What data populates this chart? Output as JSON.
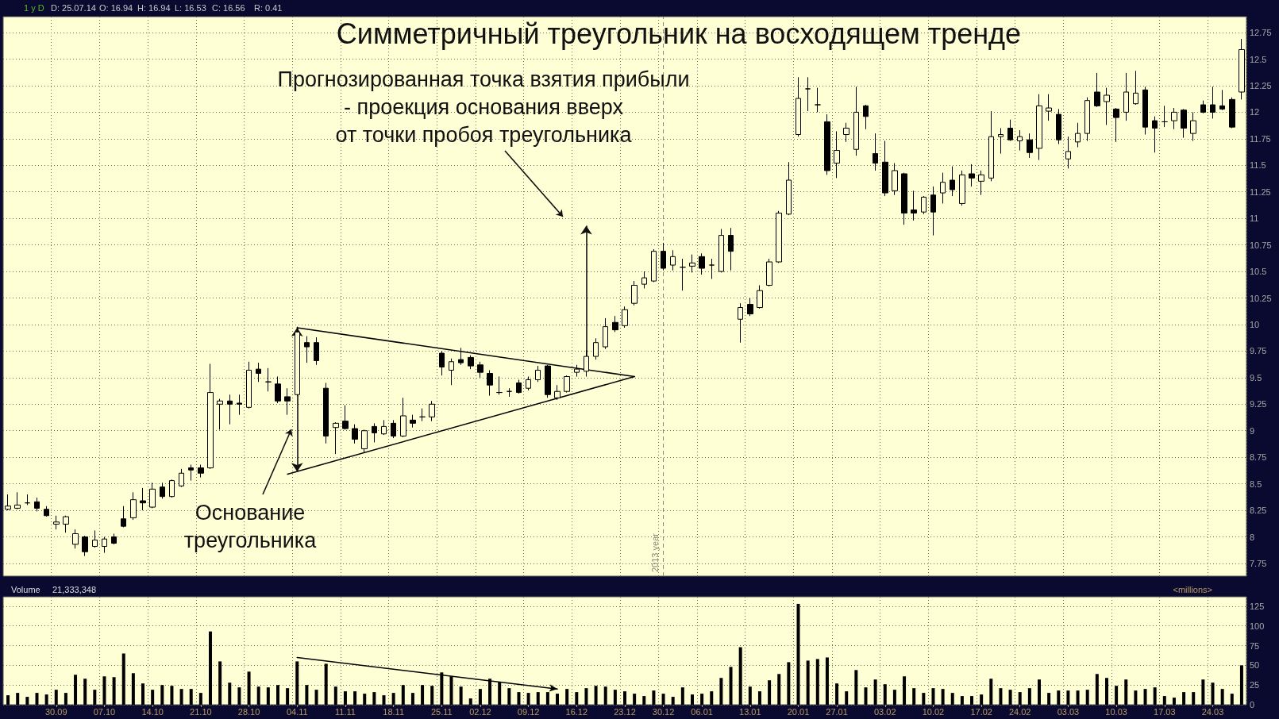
{
  "chart_data": [
    {
      "type": "candlestick",
      "title": "Симметричный треугольник на восходящем тренде",
      "annotations": [
        "1 y D",
        "D: 25.07.14",
        "O: 16.94",
        "H: 16.94",
        "L: 16.53",
        "C: 16.56",
        "R: 0.41",
        "Прогнозированная точка взятия прибыли\n- проекция основания вверх\nот точки пробоя треугольника",
        "Основание\nтреугольника"
      ],
      "ref_lines": [
        {
          "axis": "x",
          "value": "30.12",
          "label": "2013 year",
          "color": "#8a8a7a",
          "line_style": "dashed"
        }
      ],
      "categories": [
        null,
        null,
        null,
        null,
        null,
        "30.09",
        null,
        null,
        null,
        null,
        "07.10",
        null,
        null,
        null,
        null,
        "14.10",
        null,
        null,
        null,
        null,
        "21.10",
        null,
        null,
        null,
        null,
        "28.10",
        null,
        null,
        null,
        null,
        "04.11",
        null,
        null,
        null,
        null,
        "11.11",
        null,
        null,
        null,
        null,
        "18.11",
        null,
        null,
        null,
        null,
        "25.11",
        null,
        null,
        null,
        "02.12",
        null,
        null,
        null,
        null,
        "09.12",
        null,
        null,
        null,
        null,
        "16.12",
        null,
        null,
        null,
        null,
        "23.12",
        null,
        null,
        null,
        "30.12",
        null,
        null,
        null,
        "06.01",
        null,
        null,
        null,
        null,
        "13.01",
        null,
        null,
        null,
        null,
        "20.01",
        null,
        null,
        null,
        "27.01",
        null,
        null,
        null,
        null,
        "03.02",
        null,
        null,
        null,
        null,
        "10.02",
        null,
        null,
        null,
        null,
        "17.02",
        null,
        null,
        null,
        "24.02",
        null,
        null,
        null,
        null,
        "03.03",
        null,
        null,
        null,
        null,
        "10.03",
        null,
        null,
        null,
        null,
        "17.03",
        null,
        null,
        null,
        null,
        "24.03",
        null,
        null,
        null
      ],
      "ohlc": [
        [
          8.26,
          8.4,
          8.25,
          8.29
        ],
        [
          8.27,
          8.42,
          8.26,
          8.3
        ],
        [
          8.32,
          8.4,
          8.3,
          8.32
        ],
        [
          8.33,
          8.37,
          8.24,
          8.27
        ],
        [
          8.26,
          8.29,
          8.19,
          8.2
        ],
        [
          8.12,
          8.2,
          8.07,
          8.14
        ],
        [
          8.12,
          8.2,
          8.04,
          8.19
        ],
        [
          7.93,
          8.07,
          7.89,
          8.03
        ],
        [
          8.0,
          8.01,
          7.82,
          7.86
        ],
        [
          7.91,
          8.06,
          7.9,
          7.97
        ],
        [
          7.91,
          8.0,
          7.85,
          7.98
        ],
        [
          8.0,
          8.03,
          7.93,
          7.94
        ],
        [
          8.17,
          8.29,
          8.09,
          8.1
        ],
        [
          8.18,
          8.42,
          8.16,
          8.35
        ],
        [
          8.34,
          8.46,
          8.25,
          8.32
        ],
        [
          8.28,
          8.51,
          8.27,
          8.45
        ],
        [
          8.47,
          8.51,
          8.36,
          8.38
        ],
        [
          8.38,
          8.54,
          8.37,
          8.53
        ],
        [
          8.48,
          8.64,
          8.47,
          8.6
        ],
        [
          8.65,
          8.68,
          8.53,
          8.63
        ],
        [
          8.65,
          8.68,
          8.56,
          8.6
        ],
        [
          8.65,
          9.63,
          8.64,
          9.36
        ],
        [
          9.25,
          9.3,
          9.01,
          9.28
        ],
        [
          9.28,
          9.34,
          9.06,
          9.25
        ],
        [
          9.26,
          9.34,
          9.15,
          9.25
        ],
        [
          9.22,
          9.65,
          9.21,
          9.57
        ],
        [
          9.58,
          9.64,
          9.46,
          9.54
        ],
        [
          9.46,
          9.59,
          9.37,
          9.46
        ],
        [
          9.44,
          9.51,
          9.26,
          9.28
        ],
        [
          9.32,
          9.4,
          9.15,
          9.28
        ],
        [
          9.34,
          9.98,
          9.33,
          9.93
        ],
        [
          9.83,
          9.89,
          9.64,
          9.79
        ],
        [
          9.83,
          9.88,
          9.62,
          9.66
        ],
        [
          9.4,
          9.45,
          8.88,
          8.95
        ],
        [
          9.03,
          9.08,
          8.78,
          9.07
        ],
        [
          9.09,
          9.24,
          9.01,
          9.02
        ],
        [
          9.02,
          9.06,
          8.88,
          8.92
        ],
        [
          8.83,
          9.01,
          8.79,
          9.0
        ],
        [
          9.04,
          9.07,
          8.89,
          8.98
        ],
        [
          8.97,
          9.1,
          8.96,
          9.04
        ],
        [
          9.07,
          9.1,
          8.93,
          8.95
        ],
        [
          8.95,
          9.31,
          8.94,
          9.14
        ],
        [
          9.1,
          9.15,
          9.03,
          9.07
        ],
        [
          9.13,
          9.21,
          9.09,
          9.13
        ],
        [
          9.13,
          9.28,
          9.09,
          9.25
        ],
        [
          9.73,
          9.75,
          9.52,
          9.6
        ],
        [
          9.57,
          9.68,
          9.43,
          9.65
        ],
        [
          9.67,
          9.78,
          9.62,
          9.64
        ],
        [
          9.69,
          9.71,
          9.58,
          9.61
        ],
        [
          9.62,
          9.65,
          9.5,
          9.55
        ],
        [
          9.54,
          9.57,
          9.33,
          9.43
        ],
        [
          9.36,
          9.51,
          9.34,
          9.36
        ],
        [
          9.37,
          9.4,
          9.32,
          9.37
        ],
        [
          9.45,
          9.48,
          9.35,
          9.36
        ],
        [
          9.4,
          9.51,
          9.38,
          9.48
        ],
        [
          9.48,
          9.61,
          9.46,
          9.57
        ],
        [
          9.61,
          9.62,
          9.31,
          9.34
        ],
        [
          9.31,
          9.43,
          9.29,
          9.37
        ],
        [
          9.37,
          9.52,
          9.36,
          9.51
        ],
        [
          9.55,
          9.62,
          9.51,
          9.58
        ],
        [
          9.56,
          9.76,
          9.51,
          9.7
        ],
        [
          9.7,
          9.87,
          9.67,
          9.83
        ],
        [
          9.79,
          10.06,
          9.77,
          9.98
        ],
        [
          10.02,
          10.08,
          9.93,
          9.95
        ],
        [
          9.99,
          10.17,
          9.97,
          10.14
        ],
        [
          10.2,
          10.41,
          10.18,
          10.37
        ],
        [
          10.38,
          10.5,
          10.34,
          10.44
        ],
        [
          10.41,
          10.71,
          10.4,
          10.69
        ],
        [
          10.69,
          10.77,
          10.51,
          10.53
        ],
        [
          10.56,
          10.7,
          10.51,
          10.64
        ],
        [
          10.54,
          10.62,
          10.32,
          10.54
        ],
        [
          10.55,
          10.66,
          10.49,
          10.58
        ],
        [
          10.64,
          10.67,
          10.47,
          10.53
        ],
        [
          10.56,
          10.62,
          10.43,
          10.56
        ],
        [
          10.5,
          10.9,
          10.49,
          10.84
        ],
        [
          10.84,
          10.91,
          10.51,
          10.69
        ],
        [
          10.05,
          10.2,
          9.83,
          10.16
        ],
        [
          10.19,
          10.25,
          10.08,
          10.1
        ],
        [
          10.16,
          10.37,
          10.15,
          10.32
        ],
        [
          10.37,
          10.62,
          10.36,
          10.59
        ],
        [
          10.59,
          11.07,
          10.58,
          11.05
        ],
        [
          11.04,
          11.53,
          11.03,
          11.36
        ],
        [
          11.79,
          12.33,
          11.77,
          12.13
        ],
        [
          12.22,
          12.33,
          12.01,
          12.22
        ],
        [
          12.07,
          12.23,
          12.0,
          12.07
        ],
        [
          11.91,
          11.98,
          11.41,
          11.45
        ],
        [
          11.52,
          11.82,
          11.38,
          11.64
        ],
        [
          11.79,
          11.9,
          11.72,
          11.85
        ],
        [
          11.65,
          12.24,
          11.59,
          12.0
        ],
        [
          12.06,
          12.07,
          11.84,
          11.96
        ],
        [
          11.61,
          11.8,
          11.45,
          11.52
        ],
        [
          11.53,
          11.73,
          11.21,
          11.24
        ],
        [
          11.26,
          11.52,
          11.22,
          11.45
        ],
        [
          11.42,
          11.43,
          10.94,
          11.05
        ],
        [
          11.08,
          11.26,
          10.98,
          11.05
        ],
        [
          11.06,
          11.21,
          11.04,
          11.2
        ],
        [
          11.22,
          11.3,
          10.84,
          11.06
        ],
        [
          11.24,
          11.43,
          11.14,
          11.34
        ],
        [
          11.36,
          11.49,
          11.21,
          11.27
        ],
        [
          11.14,
          11.45,
          11.12,
          11.41
        ],
        [
          11.42,
          11.51,
          11.3,
          11.38
        ],
        [
          11.35,
          11.45,
          11.22,
          11.41
        ],
        [
          11.38,
          12.01,
          11.35,
          11.77
        ],
        [
          11.77,
          11.85,
          11.61,
          11.79
        ],
        [
          11.85,
          11.93,
          11.73,
          11.74
        ],
        [
          11.73,
          11.83,
          11.64,
          11.77
        ],
        [
          11.74,
          11.8,
          11.57,
          11.62
        ],
        [
          11.66,
          12.17,
          11.55,
          12.06
        ],
        [
          12.01,
          12.17,
          11.92,
          12.04
        ],
        [
          11.98,
          12.03,
          11.7,
          11.74
        ],
        [
          11.56,
          11.77,
          11.47,
          11.63
        ],
        [
          11.72,
          11.9,
          11.67,
          11.8
        ],
        [
          11.8,
          12.14,
          11.73,
          12.11
        ],
        [
          12.19,
          12.37,
          12.05,
          12.06
        ],
        [
          12.1,
          12.23,
          11.88,
          12.16
        ],
        [
          12.03,
          12.04,
          11.72,
          11.95
        ],
        [
          12.0,
          12.37,
          11.92,
          12.19
        ],
        [
          12.08,
          12.39,
          12.07,
          12.18
        ],
        [
          12.21,
          12.24,
          11.79,
          11.86
        ],
        [
          11.92,
          11.96,
          11.62,
          11.85
        ],
        [
          11.91,
          12.06,
          11.86,
          11.91
        ],
        [
          11.92,
          12.04,
          11.84,
          12.0
        ],
        [
          12.02,
          12.03,
          11.76,
          11.85
        ],
        [
          11.8,
          12.0,
          11.73,
          11.92
        ],
        [
          12.07,
          12.11,
          11.99,
          12.0
        ],
        [
          12.07,
          12.24,
          11.94,
          12.0
        ],
        [
          12.06,
          12.21,
          12.02,
          12.03
        ],
        [
          12.12,
          12.14,
          11.85,
          11.86
        ],
        [
          12.19,
          12.69,
          12.12,
          12.59
        ]
      ],
      "color": "#000000",
      "series": [
        {
          "type": "line",
          "color": "#000000",
          "values": [
            null,
            null,
            null,
            null,
            null,
            null,
            null,
            null,
            null,
            null,
            null,
            null,
            null,
            null,
            null,
            null,
            null,
            null,
            null,
            null,
            null,
            null,
            null,
            null,
            null,
            null,
            null,
            null,
            null,
            null,
            9.97,
            null,
            null,
            null,
            null,
            null,
            null,
            null,
            null,
            null,
            null,
            null,
            null,
            null,
            null,
            null,
            null,
            null,
            null,
            null,
            null,
            null,
            null,
            null,
            null,
            null,
            null,
            null,
            null,
            null,
            null,
            null,
            null,
            null,
            null,
            9.51,
            null,
            null,
            null,
            null,
            null,
            null,
            null,
            null,
            null,
            null,
            null,
            null,
            null,
            null,
            null,
            null,
            null,
            null,
            null,
            null,
            null,
            null,
            null,
            null,
            null,
            null,
            null,
            null,
            null,
            null,
            null,
            null,
            null,
            null,
            null,
            null,
            null,
            null,
            null,
            null,
            null,
            null,
            null,
            null,
            null,
            null,
            null,
            null,
            null,
            null,
            null,
            null,
            null,
            null,
            null,
            null,
            null,
            null,
            null,
            null,
            null,
            null,
            null
          ]
        },
        {
          "type": "line",
          "color": "#000000",
          "values": [
            null,
            null,
            null,
            null,
            null,
            null,
            null,
            null,
            null,
            null,
            null,
            null,
            null,
            null,
            null,
            null,
            null,
            null,
            null,
            null,
            null,
            null,
            null,
            null,
            null,
            null,
            null,
            null,
            null,
            8.59,
            null,
            null,
            null,
            null,
            null,
            null,
            null,
            null,
            null,
            null,
            null,
            null,
            null,
            null,
            null,
            null,
            null,
            null,
            null,
            null,
            null,
            null,
            null,
            null,
            null,
            null,
            null,
            null,
            null,
            null,
            null,
            null,
            null,
            null,
            null,
            9.51,
            null,
            null,
            null,
            null,
            null,
            null,
            null,
            null,
            null,
            null,
            null,
            null,
            null,
            null,
            null,
            null,
            null,
            null,
            null,
            null,
            null,
            null,
            null,
            null,
            null,
            null,
            null,
            null,
            null,
            null,
            null,
            null,
            null,
            null,
            null,
            null,
            null,
            null,
            null,
            null,
            null,
            null,
            null,
            null,
            null,
            null,
            null,
            null,
            null,
            null,
            null,
            null,
            null,
            null,
            null,
            null,
            null,
            null,
            null,
            null,
            null,
            null,
            null
          ]
        }
      ],
      "ylim": [
        7.63,
        12.9
      ],
      "yticks": [
        7.75,
        8,
        8.25,
        8.5,
        8.75,
        9,
        9.25,
        9.5,
        9.75,
        10,
        10.25,
        10.5,
        10.75,
        11,
        11.25,
        11.5,
        11.75,
        12,
        12.25,
        12.5,
        12.75
      ],
      "grid": true,
      "tick_labels": "y"
    },
    {
      "type": "bar",
      "title": "Volume",
      "ylabel": "<millions>",
      "annotations": [
        "21,333,348"
      ],
      "categories": [
        null,
        null,
        null,
        null,
        null,
        "30.09",
        null,
        null,
        null,
        null,
        "07.10",
        null,
        null,
        null,
        null,
        "14.10",
        null,
        null,
        null,
        null,
        "21.10",
        null,
        null,
        null,
        null,
        "28.10",
        null,
        null,
        null,
        null,
        "04.11",
        null,
        null,
        null,
        null,
        "11.11",
        null,
        null,
        null,
        null,
        "18.11",
        null,
        null,
        null,
        null,
        "25.11",
        null,
        null,
        null,
        "02.12",
        null,
        null,
        null,
        null,
        "09.12",
        null,
        null,
        null,
        null,
        "16.12",
        null,
        null,
        null,
        null,
        "23.12",
        null,
        null,
        null,
        "30.12",
        null,
        null,
        null,
        "06.01",
        null,
        null,
        null,
        null,
        "13.01",
        null,
        null,
        null,
        null,
        "20.01",
        null,
        null,
        null,
        "27.01",
        null,
        null,
        null,
        null,
        "03.02",
        null,
        null,
        null,
        null,
        "10.02",
        null,
        null,
        null,
        null,
        "17.02",
        null,
        null,
        null,
        "24.02",
        null,
        null,
        null,
        null,
        "03.03",
        null,
        null,
        null,
        null,
        "10.03",
        null,
        null,
        null,
        null,
        "17.03",
        null,
        null,
        null,
        null,
        "24.03",
        null,
        null,
        null
      ],
      "values": [
        12,
        15,
        10,
        15,
        13,
        19,
        15,
        38,
        33,
        19,
        36,
        35,
        65,
        40,
        27,
        19,
        25,
        24,
        20,
        20,
        15,
        93,
        55,
        28,
        22,
        42,
        23,
        22,
        25,
        21,
        55,
        25,
        19,
        52,
        23,
        17,
        17,
        14,
        16,
        12,
        15,
        25,
        15,
        25,
        24,
        41,
        36,
        23,
        8,
        20,
        33,
        29,
        21,
        16,
        15,
        16,
        16,
        14,
        20,
        16,
        21,
        24,
        23,
        19,
        17,
        14,
        11,
        18,
        14,
        10,
        22,
        13,
        14,
        17,
        34,
        48,
        73,
        23,
        17,
        31,
        39,
        54,
        128,
        56,
        58,
        60,
        27,
        17,
        44,
        22,
        32,
        26,
        19,
        36,
        21,
        15,
        21,
        20,
        15,
        11,
        11,
        13,
        33,
        21,
        19,
        16,
        21,
        32,
        15,
        18,
        18,
        18,
        19,
        39,
        34,
        24,
        32,
        18,
        20,
        22,
        11,
        9,
        16,
        16,
        32,
        28,
        20,
        14,
        50
      ],
      "color": "#000000",
      "series": [
        {
          "type": "line",
          "color": "#000000",
          "values": [
            null,
            null,
            null,
            null,
            null,
            null,
            null,
            null,
            null,
            null,
            null,
            null,
            null,
            null,
            null,
            null,
            null,
            null,
            null,
            null,
            null,
            null,
            null,
            null,
            null,
            null,
            null,
            null,
            null,
            null,
            60,
            null,
            null,
            null,
            null,
            null,
            null,
            null,
            null,
            null,
            null,
            null,
            null,
            null,
            null,
            null,
            null,
            null,
            null,
            null,
            null,
            null,
            null,
            null,
            null,
            null,
            null,
            20,
            null,
            null,
            null,
            null,
            null,
            null,
            null,
            null,
            null,
            null,
            null,
            null,
            null,
            null,
            null,
            null,
            null,
            null,
            null,
            null,
            null,
            null,
            null,
            null,
            null,
            null,
            null,
            null,
            null,
            null,
            null,
            null,
            null,
            null,
            null,
            null,
            null,
            null,
            null,
            null,
            null,
            null,
            null,
            null,
            null,
            null,
            null,
            null,
            null,
            null,
            null,
            null,
            null,
            null,
            null,
            null,
            null,
            null,
            null,
            null,
            null,
            null,
            null,
            null,
            null,
            null,
            null,
            null,
            null,
            null,
            null
          ]
        }
      ],
      "ylim": [
        0,
        137
      ],
      "yticks": [
        0,
        25,
        50,
        75,
        100,
        125
      ],
      "grid": true
    }
  ]
}
